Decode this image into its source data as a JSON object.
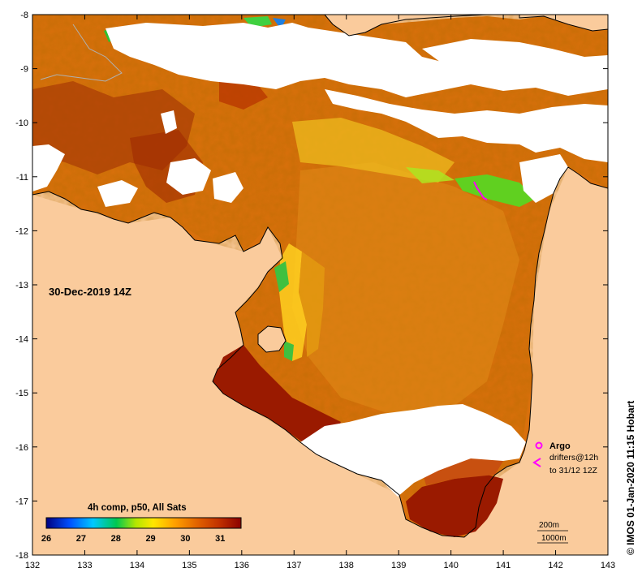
{
  "map": {
    "date_label": "30-Dec-2019 14Z",
    "credit": "© IMOS 01-Jan-2020 11:15 Hobart",
    "lon_ticks": [
      "132",
      "133",
      "134",
      "135",
      "136",
      "137",
      "138",
      "139",
      "140",
      "141",
      "142",
      "143"
    ],
    "lat_ticks": [
      "-8",
      "-9",
      "-10",
      "-11",
      "-12",
      "-13",
      "-14",
      "-15",
      "-16",
      "-17",
      "-18"
    ],
    "lon_range": [
      132,
      143
    ],
    "lat_range": [
      -18,
      -8
    ],
    "colors": {
      "land": "#facb9c",
      "no_data": "#ffffff",
      "coast": "#000000"
    }
  },
  "colorbar": {
    "title": "4h comp, p50, All Sats",
    "tick_labels": [
      "26",
      "27",
      "28",
      "29",
      "30",
      "31"
    ],
    "range": [
      26,
      31.6
    ],
    "stops": [
      "#000080",
      "#0050ff",
      "#00c8ff",
      "#00c850",
      "#b4e600",
      "#ffe600",
      "#ffa000",
      "#e06000",
      "#c03000",
      "#8c0000"
    ]
  },
  "legend": {
    "argo_label": "Argo",
    "drifters_line1": "drifters@12h",
    "drifters_line2": "to 31/12 12Z",
    "argo_color": "#ff00ff",
    "drifter_color": "#ff00ff"
  },
  "depth_legend": {
    "line1": "200m",
    "line2": "1000m"
  }
}
